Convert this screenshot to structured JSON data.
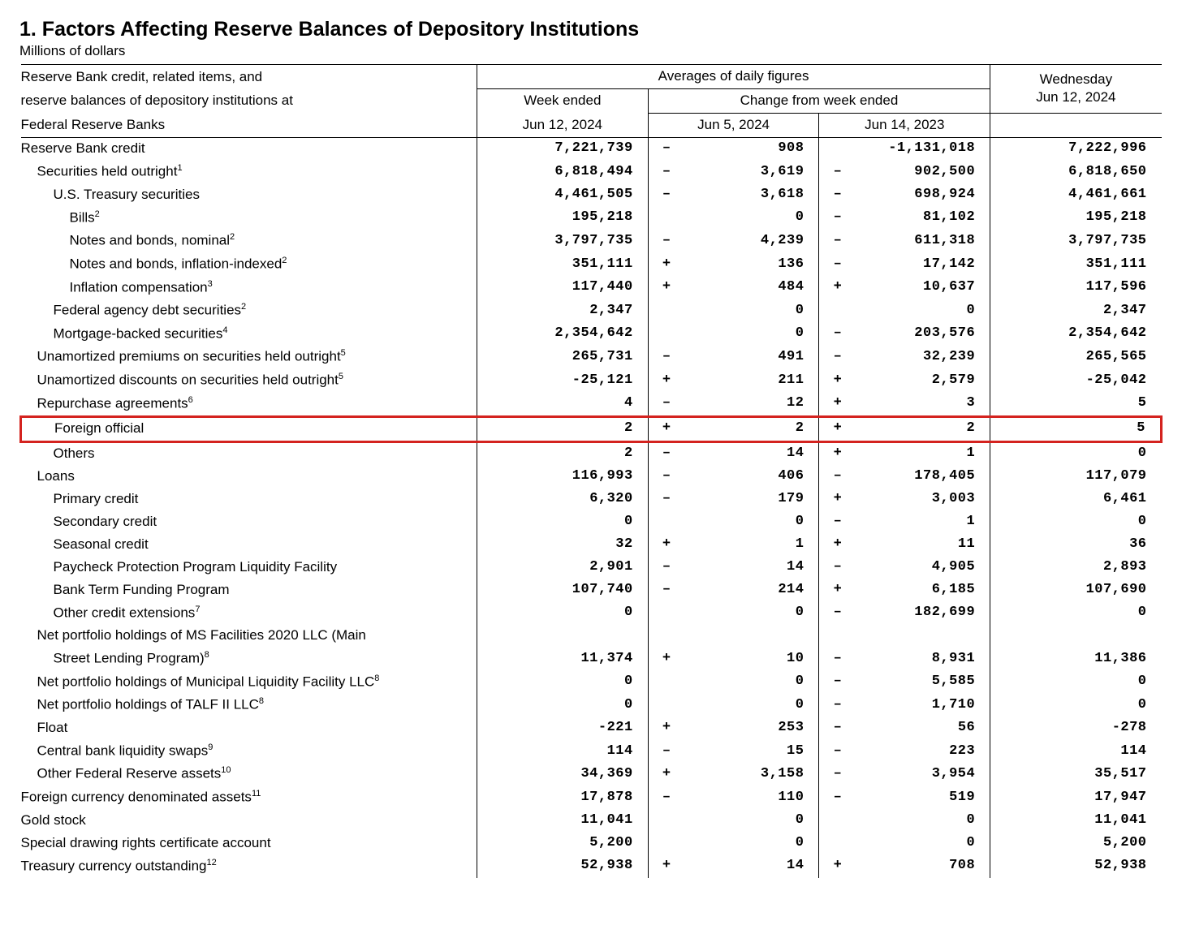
{
  "title": "1. Factors Affecting Reserve Balances of Depository Institutions",
  "subtitle": "Millions of dollars",
  "header": {
    "desc1": "Reserve Bank credit, related items, and",
    "desc2": "reserve balances of depository institutions at",
    "desc3": "Federal Reserve Banks",
    "averages": "Averages of daily figures",
    "week_ended": "Week ended",
    "week_date": "Jun 12, 2024",
    "change_from": "Change from week ended",
    "change1": "Jun 5, 2024",
    "change2": "Jun 14, 2023",
    "wed": "Wednesday",
    "wed_date": "Jun 12, 2024"
  },
  "row_style": {
    "font_family": "Arial, Helvetica, sans-serif",
    "num_font": "Courier New",
    "highlight_color": "#d4231f"
  },
  "rows": [
    {
      "label": "Reserve Bank credit",
      "sup": "",
      "ind": 0,
      "c1": "7,221,739",
      "s2": "–",
      "c2": "908",
      "s3": "",
      "c3": "-1,131,018",
      "c4": "7,222,996",
      "hl": false
    },
    {
      "label": "Securities held outright",
      "sup": "1",
      "ind": 1,
      "c1": "6,818,494",
      "s2": "–",
      "c2": "3,619",
      "s3": "–",
      "c3": "902,500",
      "c4": "6,818,650",
      "hl": false
    },
    {
      "label": "U.S. Treasury securities",
      "sup": "",
      "ind": 2,
      "c1": "4,461,505",
      "s2": "–",
      "c2": "3,618",
      "s3": "–",
      "c3": "698,924",
      "c4": "4,461,661",
      "hl": false
    },
    {
      "label": "Bills",
      "sup": "2",
      "ind": 3,
      "c1": "195,218",
      "s2": "",
      "c2": "0",
      "s3": "–",
      "c3": "81,102",
      "c4": "195,218",
      "hl": false
    },
    {
      "label": "Notes and bonds, nominal",
      "sup": "2",
      "ind": 3,
      "c1": "3,797,735",
      "s2": "–",
      "c2": "4,239",
      "s3": "–",
      "c3": "611,318",
      "c4": "3,797,735",
      "hl": false
    },
    {
      "label": "Notes and bonds, inflation-indexed",
      "sup": "2",
      "ind": 3,
      "c1": "351,111",
      "s2": "+",
      "c2": "136",
      "s3": "–",
      "c3": "17,142",
      "c4": "351,111",
      "hl": false
    },
    {
      "label": "Inflation compensation",
      "sup": "3",
      "ind": 3,
      "c1": "117,440",
      "s2": "+",
      "c2": "484",
      "s3": "+",
      "c3": "10,637",
      "c4": "117,596",
      "hl": false
    },
    {
      "label": "Federal agency debt securities",
      "sup": "2",
      "ind": 2,
      "c1": "2,347",
      "s2": "",
      "c2": "0",
      "s3": "",
      "c3": "0",
      "c4": "2,347",
      "hl": false
    },
    {
      "label": "Mortgage-backed securities",
      "sup": "4",
      "ind": 2,
      "c1": "2,354,642",
      "s2": "",
      "c2": "0",
      "s3": "–",
      "c3": "203,576",
      "c4": "2,354,642",
      "hl": false
    },
    {
      "label": "Unamortized premiums on securities held outright",
      "sup": "5",
      "ind": 1,
      "c1": "265,731",
      "s2": "–",
      "c2": "491",
      "s3": "–",
      "c3": "32,239",
      "c4": "265,565",
      "hl": false
    },
    {
      "label": "Unamortized discounts on securities held outright",
      "sup": "5",
      "ind": 1,
      "c1": "-25,121",
      "s2": "+",
      "c2": "211",
      "s3": "+",
      "c3": "2,579",
      "c4": "-25,042",
      "hl": false
    },
    {
      "label": "Repurchase agreements",
      "sup": "6",
      "ind": 1,
      "c1": "4",
      "s2": "–",
      "c2": "12",
      "s3": "+",
      "c3": "3",
      "c4": "5",
      "hl": false
    },
    {
      "label": "Foreign official",
      "sup": "",
      "ind": 2,
      "c1": "2",
      "s2": "+",
      "c2": "2",
      "s3": "+",
      "c3": "2",
      "c4": "5",
      "hl": true
    },
    {
      "label": "Others",
      "sup": "",
      "ind": 2,
      "c1": "2",
      "s2": "–",
      "c2": "14",
      "s3": "+",
      "c3": "1",
      "c4": "0",
      "hl": false
    },
    {
      "label": "Loans",
      "sup": "",
      "ind": 1,
      "c1": "116,993",
      "s2": "–",
      "c2": "406",
      "s3": "–",
      "c3": "178,405",
      "c4": "117,079",
      "hl": false
    },
    {
      "label": "Primary credit",
      "sup": "",
      "ind": 2,
      "c1": "6,320",
      "s2": "–",
      "c2": "179",
      "s3": "+",
      "c3": "3,003",
      "c4": "6,461",
      "hl": false
    },
    {
      "label": "Secondary credit",
      "sup": "",
      "ind": 2,
      "c1": "0",
      "s2": "",
      "c2": "0",
      "s3": "–",
      "c3": "1",
      "c4": "0",
      "hl": false
    },
    {
      "label": "Seasonal credit",
      "sup": "",
      "ind": 2,
      "c1": "32",
      "s2": "+",
      "c2": "1",
      "s3": "+",
      "c3": "11",
      "c4": "36",
      "hl": false
    },
    {
      "label": "Paycheck Protection Program Liquidity Facility",
      "sup": "",
      "ind": 2,
      "c1": "2,901",
      "s2": "–",
      "c2": "14",
      "s3": "–",
      "c3": "4,905",
      "c4": "2,893",
      "hl": false
    },
    {
      "label": "Bank Term Funding Program",
      "sup": "",
      "ind": 2,
      "c1": "107,740",
      "s2": "–",
      "c2": "214",
      "s3": "+",
      "c3": "6,185",
      "c4": "107,690",
      "hl": false
    },
    {
      "label": "Other credit extensions",
      "sup": "7",
      "ind": 2,
      "c1": "0",
      "s2": "",
      "c2": "0",
      "s3": "–",
      "c3": "182,699",
      "c4": "0",
      "hl": false
    },
    {
      "label": "Net portfolio holdings of MS Facilities 2020 LLC (Main",
      "sup": "",
      "ind": 1,
      "c1": "",
      "s2": "",
      "c2": "",
      "s3": "",
      "c3": "",
      "c4": "",
      "hl": false
    },
    {
      "label": "Street Lending Program)",
      "sup": "8",
      "ind": 2,
      "c1": "11,374",
      "s2": "+",
      "c2": "10",
      "s3": "–",
      "c3": "8,931",
      "c4": "11,386",
      "hl": false
    },
    {
      "label": "Net portfolio holdings of Municipal Liquidity Facility LLC",
      "sup": "8",
      "ind": 1,
      "c1": "0",
      "s2": "",
      "c2": "0",
      "s3": "–",
      "c3": "5,585",
      "c4": "0",
      "hl": false
    },
    {
      "label": "Net portfolio holdings of TALF II LLC",
      "sup": "8",
      "ind": 1,
      "c1": "0",
      "s2": "",
      "c2": "0",
      "s3": "–",
      "c3": "1,710",
      "c4": "0",
      "hl": false
    },
    {
      "label": "Float",
      "sup": "",
      "ind": 1,
      "c1": "-221",
      "s2": "+",
      "c2": "253",
      "s3": "–",
      "c3": "56",
      "c4": "-278",
      "hl": false
    },
    {
      "label": "Central bank liquidity swaps",
      "sup": "9",
      "ind": 1,
      "c1": "114",
      "s2": "–",
      "c2": "15",
      "s3": "–",
      "c3": "223",
      "c4": "114",
      "hl": false
    },
    {
      "label": "Other Federal Reserve assets",
      "sup": "10",
      "ind": 1,
      "c1": "34,369",
      "s2": "+",
      "c2": "3,158",
      "s3": "–",
      "c3": "3,954",
      "c4": "35,517",
      "hl": false
    },
    {
      "label": "Foreign currency denominated assets",
      "sup": "11",
      "ind": 0,
      "c1": "17,878",
      "s2": "–",
      "c2": "110",
      "s3": "–",
      "c3": "519",
      "c4": "17,947",
      "hl": false
    },
    {
      "label": "Gold stock",
      "sup": "",
      "ind": 0,
      "c1": "11,041",
      "s2": "",
      "c2": "0",
      "s3": "",
      "c3": "0",
      "c4": "11,041",
      "hl": false
    },
    {
      "label": "Special drawing rights certificate account",
      "sup": "",
      "ind": 0,
      "c1": "5,200",
      "s2": "",
      "c2": "0",
      "s3": "",
      "c3": "0",
      "c4": "5,200",
      "hl": false
    },
    {
      "label": "Treasury currency outstanding",
      "sup": "12",
      "ind": 0,
      "c1": "52,938",
      "s2": "+",
      "c2": "14",
      "s3": "+",
      "c3": "708",
      "c4": "52,938",
      "hl": false
    }
  ]
}
